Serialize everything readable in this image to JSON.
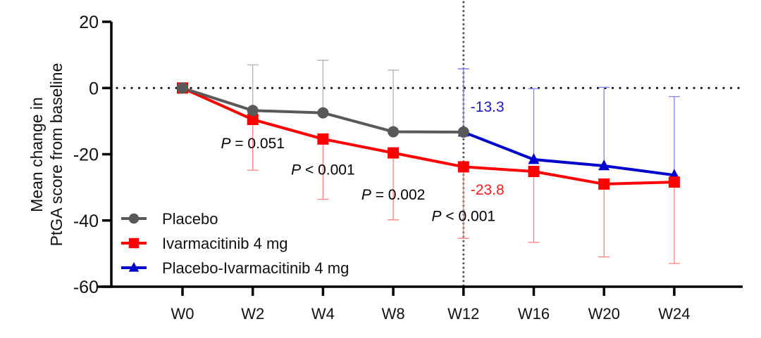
{
  "chart_data": {
    "type": "line",
    "title": "",
    "xlabel": "",
    "ylabel_lines": [
      "Mean change in",
      "PtGA score from baseline"
    ],
    "categories": [
      "W0",
      "W2",
      "W4",
      "W8",
      "W12",
      "W16",
      "W20",
      "W24"
    ],
    "yticks": [
      20,
      0,
      -20,
      -40,
      -60
    ],
    "ytick_labels": [
      "20",
      "0",
      "-20",
      "-40",
      "-60"
    ],
    "ylim": [
      -60,
      20
    ],
    "reference_line_y": 0,
    "reference_line_x": "W12",
    "grid": false,
    "legend_position": "bottom-left",
    "series": [
      {
        "name": "Placebo",
        "color": "#595959",
        "error_color": "#b3b3b3",
        "marker": "circle",
        "x": [
          "W0",
          "W2",
          "W4",
          "W8",
          "W12"
        ],
        "values": [
          0,
          -6.8,
          -7.5,
          -13.2,
          -13.3
        ],
        "error_upper": [
          0,
          7.0,
          8.4,
          5.4,
          5.8
        ],
        "error_lower": [
          null,
          null,
          null,
          null,
          null
        ]
      },
      {
        "name": "Ivarmacitinib 4 mg",
        "color": "#ff0000",
        "error_color": "#ff8080",
        "marker": "square",
        "x": [
          "W0",
          "W2",
          "W4",
          "W8",
          "W12",
          "W16",
          "W20",
          "W24"
        ],
        "values": [
          0,
          -9.5,
          -15.4,
          -19.6,
          -23.8,
          -25.2,
          -29.0,
          -28.4
        ],
        "error_upper": [
          null,
          null,
          null,
          null,
          null,
          null,
          null,
          null
        ],
        "error_lower": [
          0,
          -24.8,
          -33.6,
          -39.8,
          -45.4,
          -46.6,
          -51.0,
          -53.0
        ]
      },
      {
        "name": "Placebo-Ivarmacitinib 4 mg",
        "color": "#0000cc",
        "error_color": "#8080ff",
        "marker": "triangle",
        "x": [
          "W12",
          "W16",
          "W20",
          "W24"
        ],
        "values": [
          -13.3,
          -21.6,
          -23.5,
          -26.3
        ],
        "error_upper": [
          5.8,
          -0.2,
          0.2,
          -2.6
        ],
        "error_lower": [
          null,
          null,
          null,
          null
        ]
      }
    ],
    "annotations": [
      {
        "text_italic": "P",
        "text": " = 0.051",
        "x": "W2",
        "y": -16.5,
        "color": "#000000"
      },
      {
        "text_italic": "P",
        "text": " < 0.001",
        "x": "W4",
        "y": -24.5,
        "color": "#000000"
      },
      {
        "text_italic": "P",
        "text": " = 0.002",
        "x": "W8",
        "y": -32.0,
        "color": "#000000"
      },
      {
        "text_italic": "P",
        "text": " < 0.001",
        "x": "W12",
        "y": -38.5,
        "color": "#000000"
      },
      {
        "text_italic": "",
        "text": "-13.3",
        "x": "W12",
        "y": -5.5,
        "color": "#1a1acc"
      },
      {
        "text_italic": "",
        "text": "-23.8",
        "x": "W12",
        "y": -30.5,
        "color": "#ff1a1a"
      }
    ]
  }
}
